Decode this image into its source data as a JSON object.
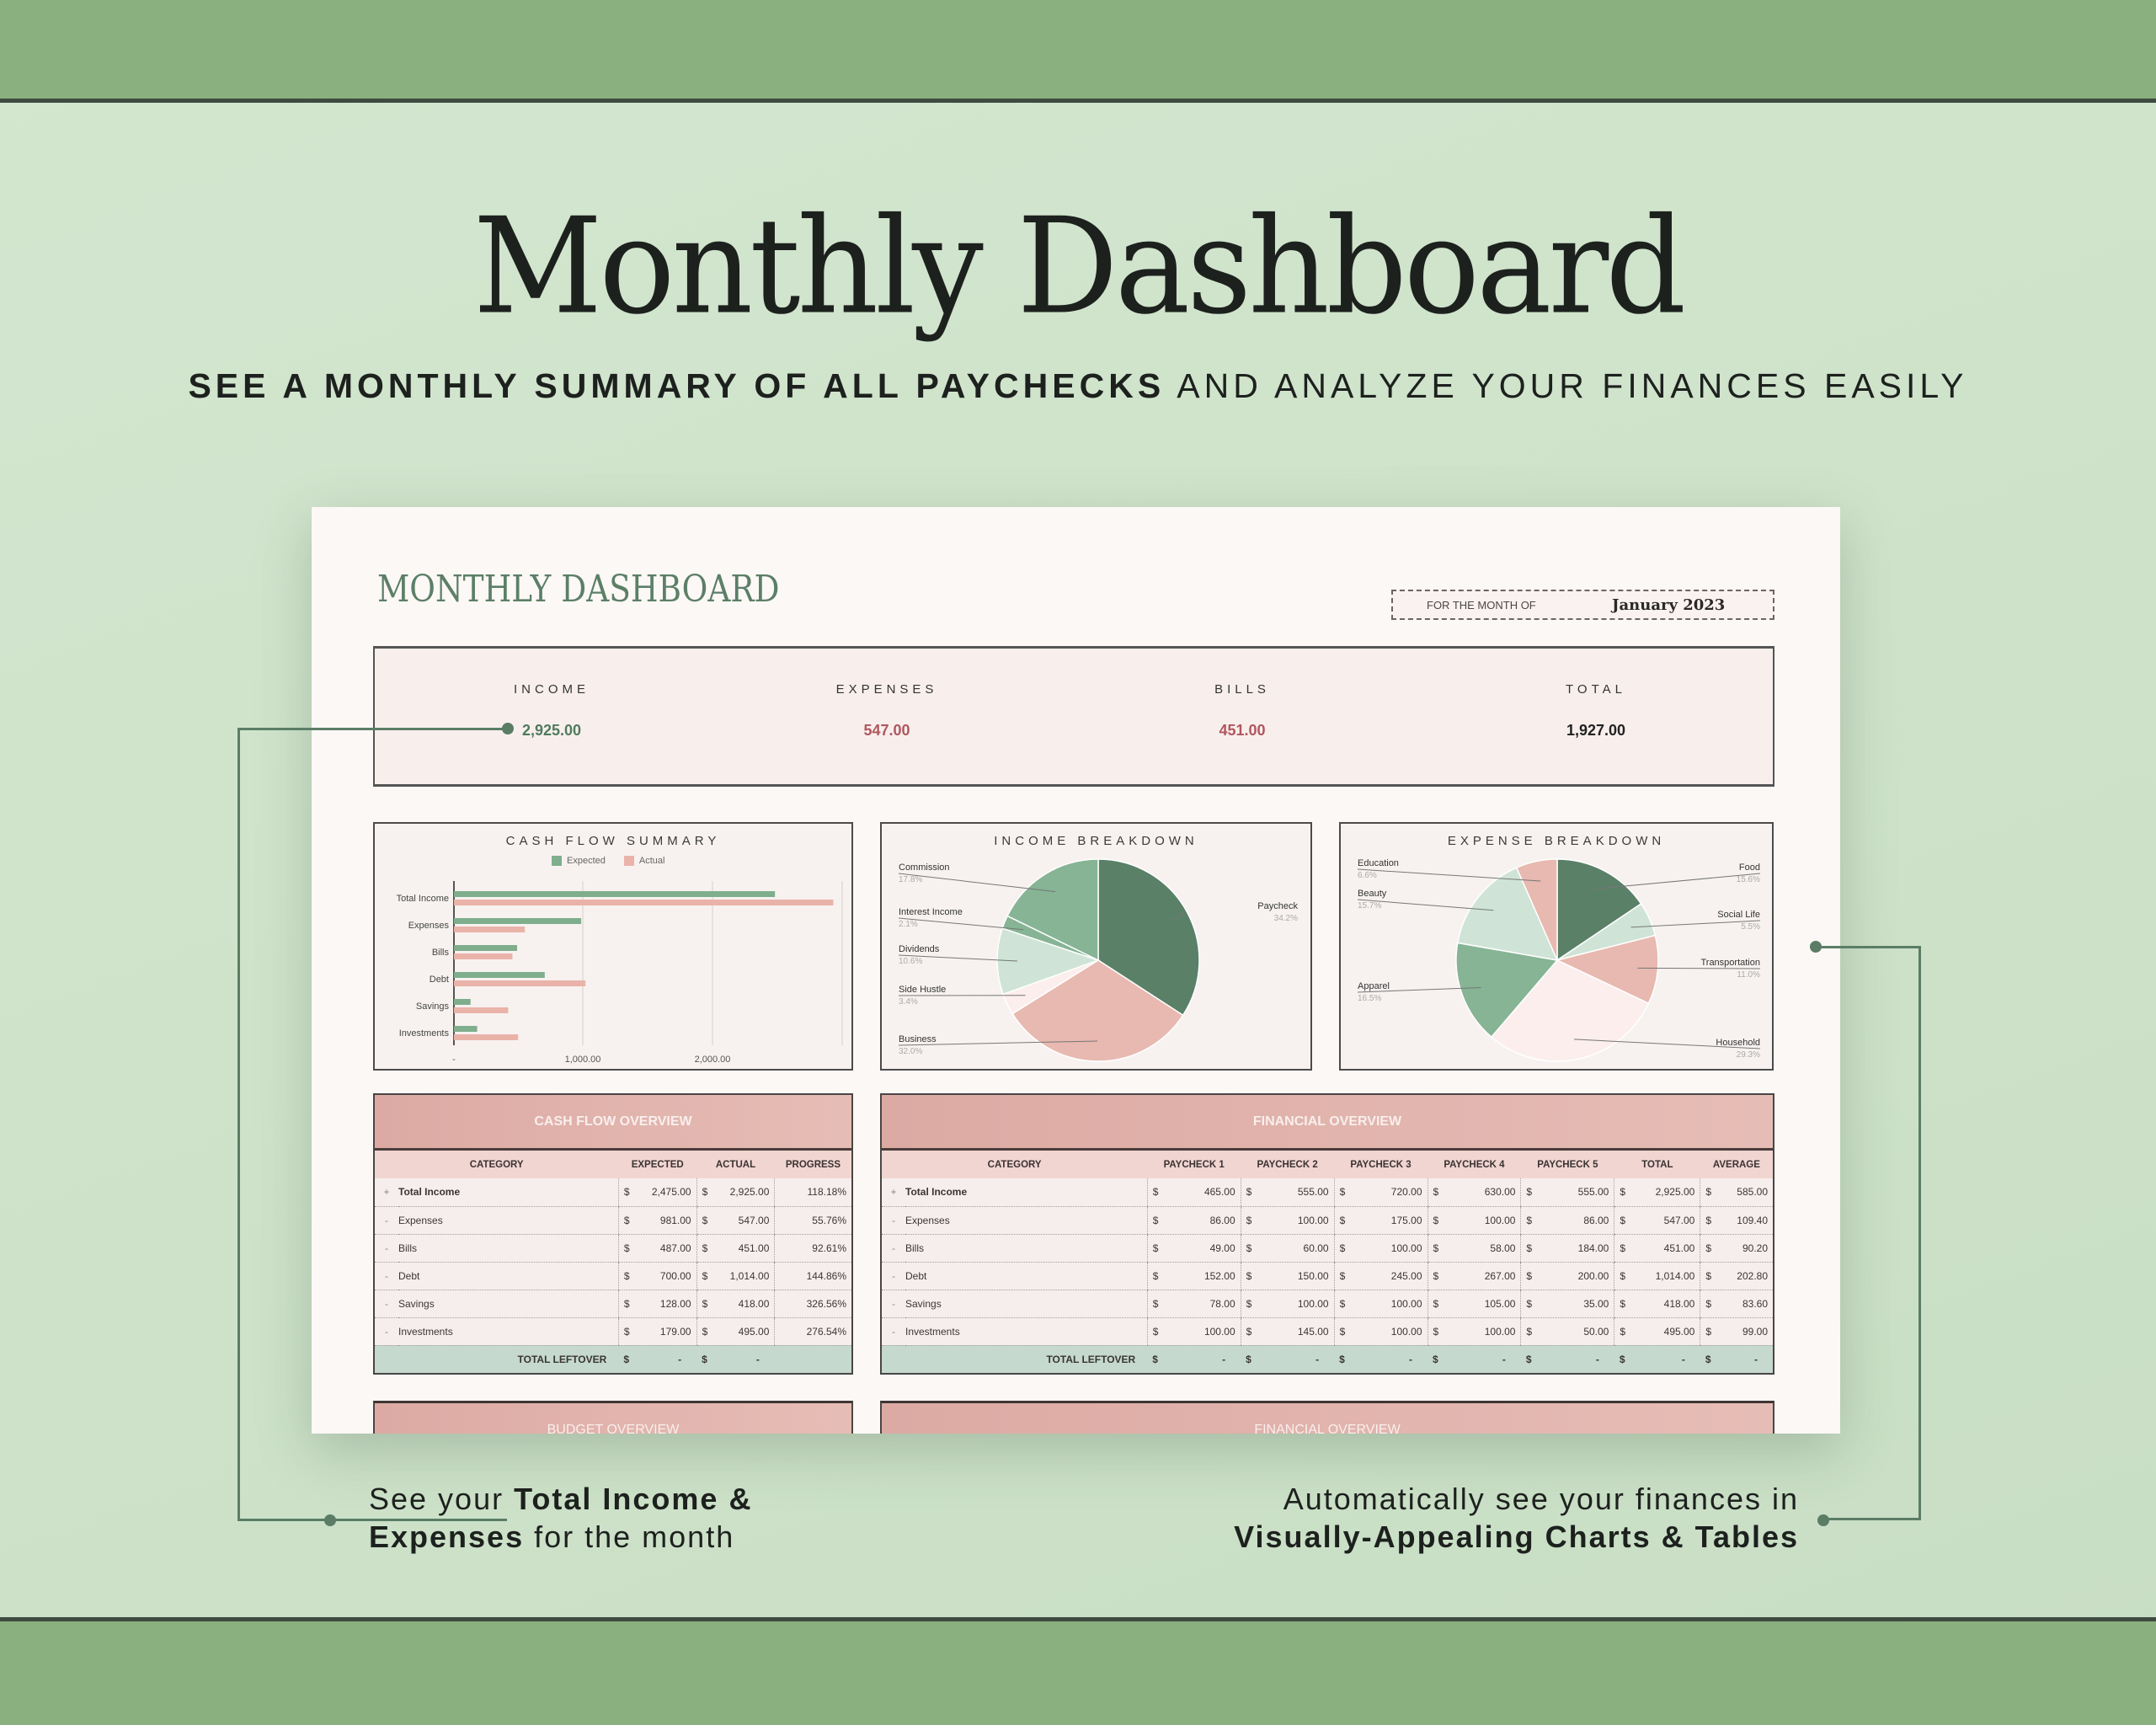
{
  "hero": {
    "title": "Monthly Dashboard",
    "subtitle_bold": "SEE A MONTHLY SUMMARY OF ALL PAYCHECKS",
    "subtitle_rest": " AND ANALYZE YOUR FINANCES EASILY"
  },
  "sheet": {
    "title": "MONTHLY DASHBOARD",
    "month_label": "FOR THE MONTH OF",
    "month_value": "January 2023"
  },
  "summary": [
    {
      "label": "INCOME",
      "value": "2,925.00",
      "color": "#4f7b5d"
    },
    {
      "label": "EXPENSES",
      "value": "547.00",
      "color": "#b0565e"
    },
    {
      "label": "BILLS",
      "value": "451.00",
      "color": "#b0565e"
    },
    {
      "label": "TOTAL",
      "value": "1,927.00",
      "color": "#222222"
    }
  ],
  "colors": {
    "expected": "#7fae8c",
    "actual": "#eab3a9",
    "dark_green": "#5a8068",
    "mid_green": "#86b495",
    "light_green": "#cfe4d7",
    "pink": "#e8b9b0",
    "pale_pink": "#fbeeec"
  },
  "chart_data": [
    {
      "type": "bar",
      "orientation": "horizontal",
      "title": "CASH FLOW SUMMARY",
      "categories": [
        "Total Income",
        "Expenses",
        "Bills",
        "Debt",
        "Savings",
        "Investments"
      ],
      "series": [
        {
          "name": "Expected",
          "values": [
            2475,
            981,
            487,
            700,
            128,
            179
          ]
        },
        {
          "name": "Actual",
          "values": [
            2925,
            547,
            451,
            1014,
            418,
            495
          ]
        }
      ],
      "xticks": [
        "-",
        "1,000.00",
        "2,000.00"
      ],
      "xlim": [
        0,
        3000
      ],
      "legend_position": "top",
      "grid": true
    },
    {
      "type": "pie",
      "title": "INCOME BREAKDOWN",
      "labels": [
        "Paycheck",
        "Business",
        "Side Hustle",
        "Dividends",
        "Interest Income",
        "Commission"
      ],
      "values": [
        34.2,
        32.0,
        3.4,
        10.6,
        2.1,
        17.8
      ],
      "display": [
        "34.2%",
        "32.0%",
        "3.4%",
        "10.6%",
        "2.1%",
        "17.8%"
      ]
    },
    {
      "type": "pie",
      "title": "EXPENSE BREAKDOWN",
      "labels": [
        "Food",
        "Social Life",
        "Transportation",
        "Household",
        "Apparel",
        "Beauty",
        "Education"
      ],
      "values": [
        15.6,
        5.5,
        11.0,
        29.3,
        16.5,
        15.7,
        6.6
      ],
      "display": [
        "15.6%",
        "5.5%",
        "11.0%",
        "29.3%",
        "16.5%",
        "15.7%",
        "6.6%"
      ]
    }
  ],
  "cash_flow_overview": {
    "title": "CASH FLOW OVERVIEW",
    "headers": [
      "CATEGORY",
      "EXPECTED",
      "ACTUAL",
      "PROGRESS"
    ],
    "rows": [
      {
        "sign": "+",
        "category": "Total Income",
        "expected": "2,475.00",
        "actual": "2,925.00",
        "progress": "118.18%"
      },
      {
        "sign": "-",
        "category": "Expenses",
        "expected": "981.00",
        "actual": "547.00",
        "progress": "55.76%"
      },
      {
        "sign": "-",
        "category": "Bills",
        "expected": "487.00",
        "actual": "451.00",
        "progress": "92.61%"
      },
      {
        "sign": "-",
        "category": "Debt",
        "expected": "700.00",
        "actual": "1,014.00",
        "progress": "144.86%"
      },
      {
        "sign": "-",
        "category": "Savings",
        "expected": "128.00",
        "actual": "418.00",
        "progress": "326.56%"
      },
      {
        "sign": "-",
        "category": "Investments",
        "expected": "179.00",
        "actual": "495.00",
        "progress": "276.54%"
      }
    ],
    "leftover_label": "TOTAL LEFTOVER",
    "leftover_expected": "-",
    "leftover_actual": "-",
    "currency": "$"
  },
  "financial_overview": {
    "title": "FINANCIAL OVERVIEW",
    "headers": [
      "CATEGORY",
      "PAYCHECK 1",
      "PAYCHECK 2",
      "PAYCHECK 3",
      "PAYCHECK 4",
      "PAYCHECK 5",
      "TOTAL",
      "AVERAGE"
    ],
    "rows": [
      {
        "sign": "+",
        "category": "Total Income",
        "values": [
          "465.00",
          "555.00",
          "720.00",
          "630.00",
          "555.00",
          "2,925.00",
          "585.00"
        ]
      },
      {
        "sign": "-",
        "category": "Expenses",
        "values": [
          "86.00",
          "100.00",
          "175.00",
          "100.00",
          "86.00",
          "547.00",
          "109.40"
        ]
      },
      {
        "sign": "-",
        "category": "Bills",
        "values": [
          "49.00",
          "60.00",
          "100.00",
          "58.00",
          "184.00",
          "451.00",
          "90.20"
        ]
      },
      {
        "sign": "-",
        "category": "Debt",
        "values": [
          "152.00",
          "150.00",
          "245.00",
          "267.00",
          "200.00",
          "1,014.00",
          "202.80"
        ]
      },
      {
        "sign": "-",
        "category": "Savings",
        "values": [
          "78.00",
          "100.00",
          "100.00",
          "105.00",
          "35.00",
          "418.00",
          "83.60"
        ]
      },
      {
        "sign": "-",
        "category": "Investments",
        "values": [
          "100.00",
          "145.00",
          "100.00",
          "100.00",
          "50.00",
          "495.00",
          "99.00"
        ]
      }
    ],
    "leftover_label": "TOTAL LEFTOVER",
    "leftover_values": [
      "-",
      "-",
      "-",
      "-",
      "-",
      "-",
      "-"
    ],
    "currency": "$"
  },
  "partial_panels": {
    "left": "BUDGET OVERVIEW",
    "right": "FINANCIAL OVERVIEW"
  },
  "captions": {
    "left_pre": "See your ",
    "left_bold": "Total Income &",
    "left_bold2": "Expenses",
    "left_post": " for the month",
    "right_line1": "Automatically see your finances in",
    "right_bold": "Visually-Appealing Charts & Tables"
  }
}
